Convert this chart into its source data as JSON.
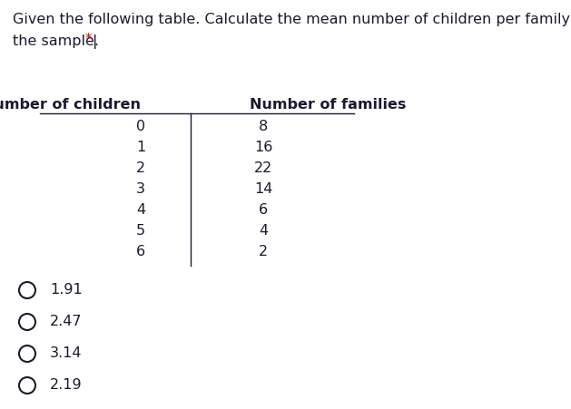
{
  "question_line1": "Given the following table. Calculate the mean number of children per family for",
  "question_line2_plain": "the sample. ",
  "question_line2_star": "*",
  "question_line2_cursor": "|",
  "col1_header": "Number of children",
  "col2_header": "Number of families",
  "col1_values": [
    "0",
    "1",
    "2",
    "3",
    "4",
    "5",
    "6"
  ],
  "col2_values": [
    "8",
    "16",
    "22",
    "14",
    "6",
    "4",
    "2"
  ],
  "options": [
    "1.91",
    "2.47",
    "3.14",
    "2.19"
  ],
  "bg_color": "#ffffff",
  "text_color": "#1a1a2e",
  "star_color": "#cc0000",
  "font_size": 11.5,
  "fig_width": 6.29,
  "fig_height": 4.52,
  "dpi": 100
}
